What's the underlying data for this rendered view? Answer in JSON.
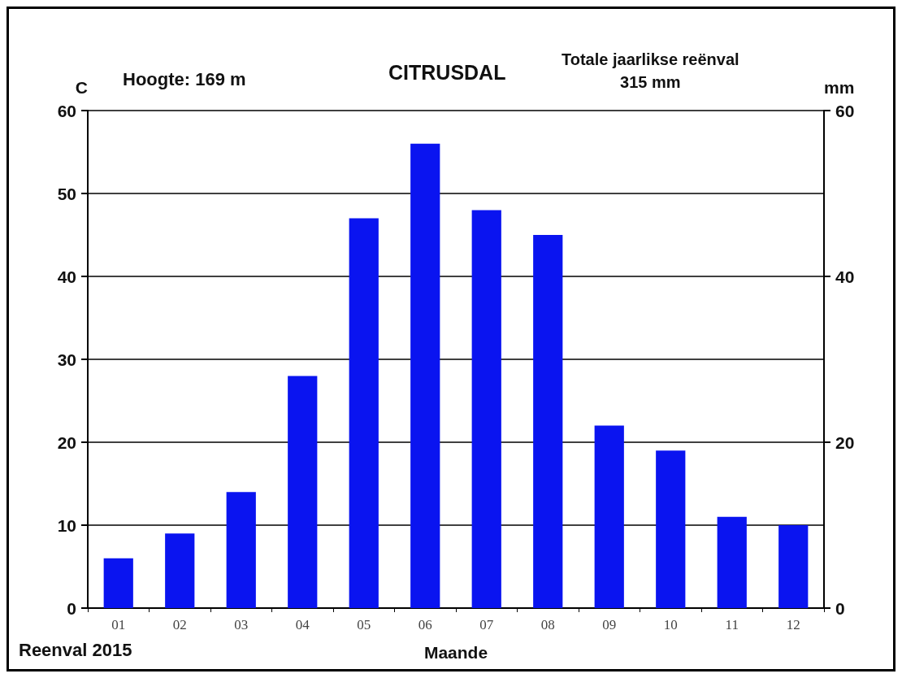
{
  "chart_data": {
    "type": "bar",
    "title": "CITRUSDAL",
    "xlabel": "Maande",
    "ylabel": "C",
    "y2label": "mm",
    "annotations": [
      "Hoogte: 169 m",
      "Totale jaarlikse reënval\n315 mm",
      "Reenval 2015"
    ],
    "categories": [
      "01",
      "02",
      "03",
      "04",
      "05",
      "06",
      "07",
      "08",
      "09",
      "10",
      "11",
      "12"
    ],
    "values": [
      6,
      9,
      14,
      28,
      47,
      56,
      48,
      45,
      22,
      19,
      11,
      10
    ],
    "color": "#0a14f0",
    "ylim": [
      0,
      60
    ],
    "yticks": [
      0,
      10,
      20,
      30,
      40,
      50,
      60
    ],
    "y2lim": [
      0,
      60
    ],
    "y2ticks": [
      0,
      20,
      40,
      60
    ],
    "grid": "y"
  }
}
